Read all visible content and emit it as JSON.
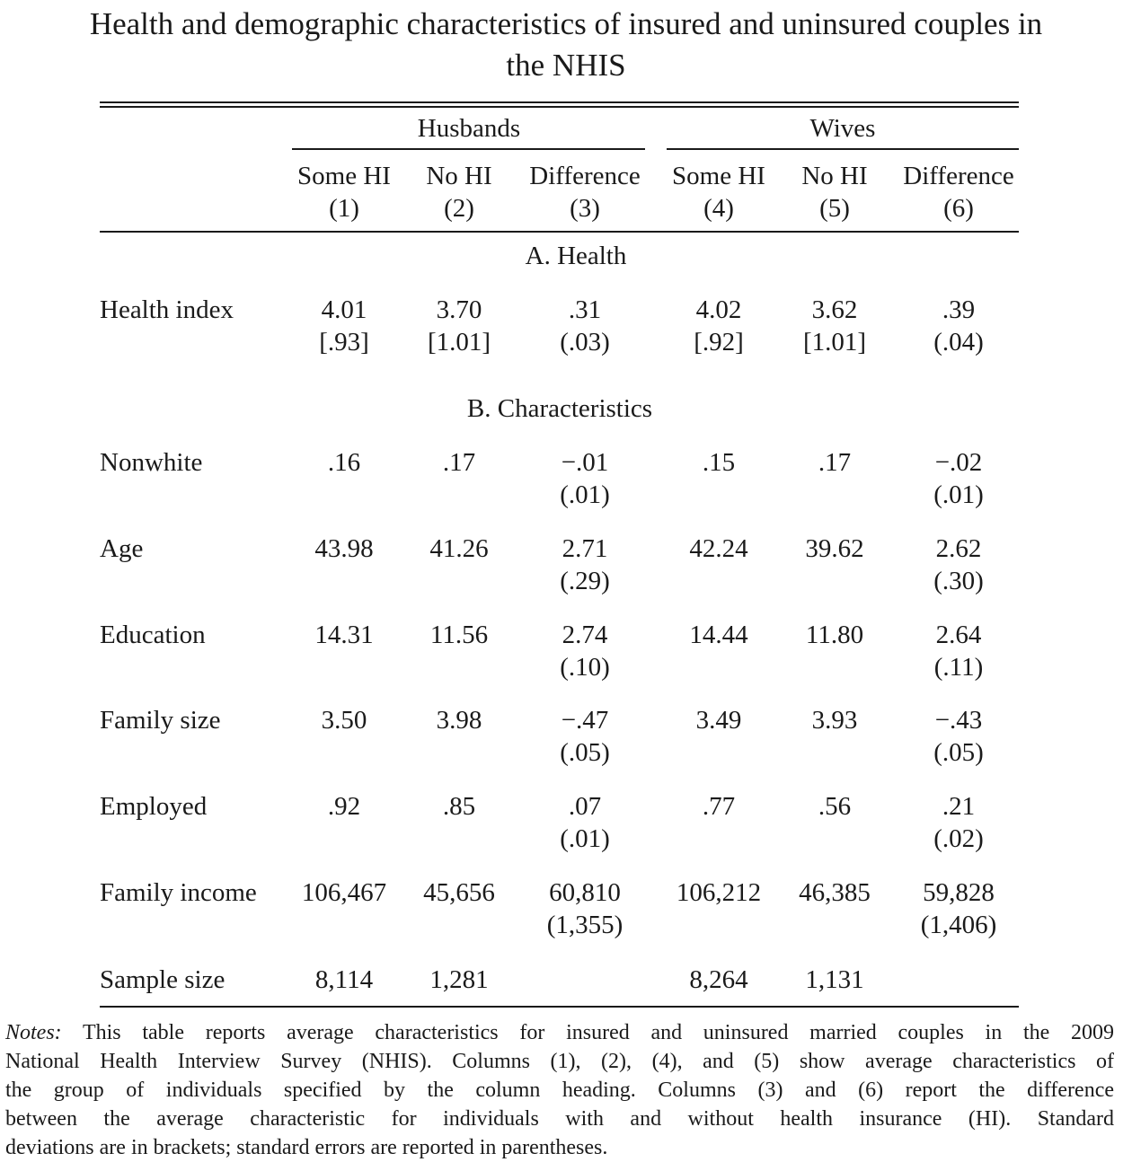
{
  "title": {
    "line1": "Health and demographic characteristics of insured and uninsured couples in",
    "line2": "the NHIS"
  },
  "table": {
    "groups": [
      "Husbands",
      "Wives"
    ],
    "columns": [
      {
        "label": "Some HI",
        "num": "(1)"
      },
      {
        "label": "No HI",
        "num": "(2)"
      },
      {
        "label": "Difference",
        "num": "(3)"
      },
      {
        "label": "Some HI",
        "num": "(4)"
      },
      {
        "label": "No HI",
        "num": "(5)"
      },
      {
        "label": "Difference",
        "num": "(6)"
      }
    ],
    "panel_a": "A. Health",
    "panel_b": "B. Characteristics",
    "rows": [
      {
        "label": "Health index",
        "values": [
          "4.01",
          "3.70",
          ".31",
          "4.02",
          "3.62",
          ".39"
        ],
        "sub": [
          "[.93]",
          "[1.01]",
          "(.03)",
          "[.92]",
          "[1.01]",
          "(.04)"
        ]
      },
      {
        "label": "Nonwhite",
        "values": [
          ".16",
          ".17",
          "−.01",
          ".15",
          ".17",
          "−.02"
        ],
        "sub": [
          "",
          "",
          "(.01)",
          "",
          "",
          "(.01)"
        ]
      },
      {
        "label": "Age",
        "values": [
          "43.98",
          "41.26",
          "2.71",
          "42.24",
          "39.62",
          "2.62"
        ],
        "sub": [
          "",
          "",
          "(.29)",
          "",
          "",
          "(.30)"
        ]
      },
      {
        "label": "Education",
        "values": [
          "14.31",
          "11.56",
          "2.74",
          "14.44",
          "11.80",
          "2.64"
        ],
        "sub": [
          "",
          "",
          "(.10)",
          "",
          "",
          "(.11)"
        ]
      },
      {
        "label": "Family size",
        "values": [
          "3.50",
          "3.98",
          "−.47",
          "3.49",
          "3.93",
          "−.43"
        ],
        "sub": [
          "",
          "",
          "(.05)",
          "",
          "",
          "(.05)"
        ]
      },
      {
        "label": "Employed",
        "values": [
          ".92",
          ".85",
          ".07",
          ".77",
          ".56",
          ".21"
        ],
        "sub": [
          "",
          "",
          "(.01)",
          "",
          "",
          "(.02)"
        ]
      },
      {
        "label": "Family income",
        "values": [
          "106,467",
          "45,656",
          "60,810",
          "106,212",
          "46,385",
          "59,828"
        ],
        "sub": [
          "",
          "",
          "(1,355)",
          "",
          "",
          "(1,406)"
        ]
      },
      {
        "label": "Sample size",
        "values": [
          "8,114",
          "1,281",
          "",
          "8,264",
          "1,131",
          ""
        ],
        "sub": [
          "",
          "",
          "",
          "",
          "",
          ""
        ]
      }
    ]
  },
  "notes": {
    "label": "Notes:",
    "lines": [
      " This table reports average characteristics for insured and uninsured married couples in the 2009",
      "National Health Interview Survey (NHIS). Columns (1), (2), (4), and (5) show average characteristics of",
      "the group of individuals specified by the column heading. Columns (3) and (6) report the difference",
      "between the average characteristic for individuals with and without health insurance (HI). Standard",
      "deviations are in brackets; standard errors are reported in parentheses."
    ]
  }
}
